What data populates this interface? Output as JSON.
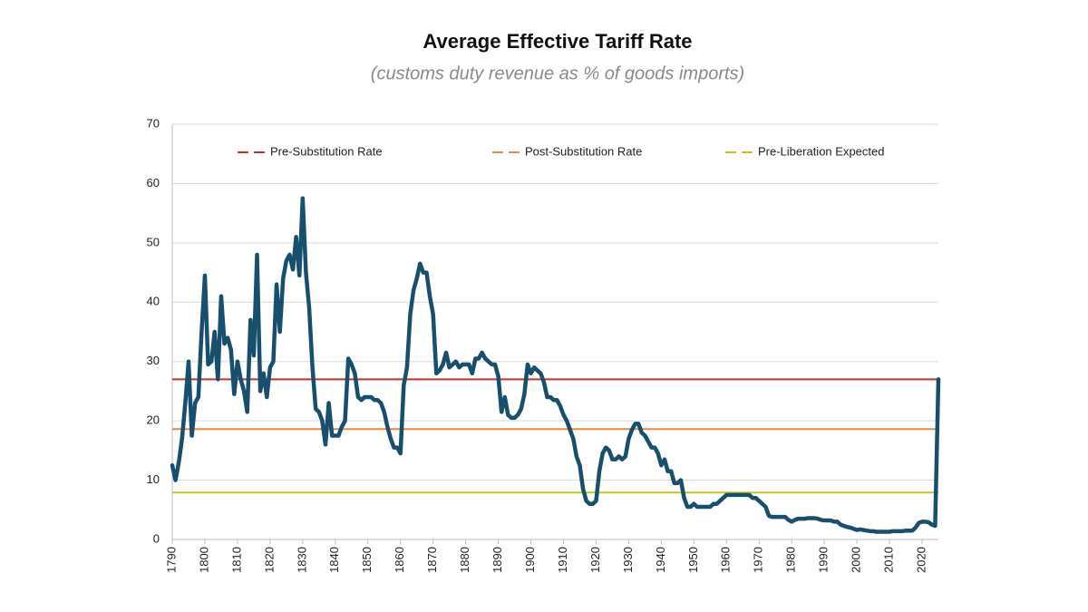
{
  "chart_data": {
    "type": "line",
    "title": "Average Effective Tariff Rate",
    "subtitle": "(customs duty revenue as % of goods imports)",
    "x": [
      1790,
      1791,
      1792,
      1793,
      1794,
      1795,
      1796,
      1797,
      1798,
      1799,
      1800,
      1801,
      1802,
      1803,
      1804,
      1805,
      1806,
      1807,
      1808,
      1809,
      1810,
      1811,
      1812,
      1813,
      1814,
      1815,
      1816,
      1817,
      1818,
      1819,
      1820,
      1821,
      1822,
      1823,
      1824,
      1825,
      1826,
      1827,
      1828,
      1829,
      1830,
      1831,
      1832,
      1833,
      1834,
      1835,
      1836,
      1837,
      1838,
      1839,
      1840,
      1841,
      1842,
      1843,
      1844,
      1845,
      1846,
      1847,
      1848,
      1849,
      1850,
      1851,
      1852,
      1853,
      1854,
      1855,
      1856,
      1857,
      1858,
      1859,
      1860,
      1861,
      1862,
      1863,
      1864,
      1865,
      1866,
      1867,
      1868,
      1869,
      1870,
      1871,
      1872,
      1873,
      1874,
      1875,
      1876,
      1877,
      1878,
      1879,
      1880,
      1881,
      1882,
      1883,
      1884,
      1885,
      1886,
      1887,
      1888,
      1889,
      1890,
      1891,
      1892,
      1893,
      1894,
      1895,
      1896,
      1897,
      1898,
      1899,
      1900,
      1901,
      1902,
      1903,
      1904,
      1905,
      1906,
      1907,
      1908,
      1909,
      1910,
      1911,
      1912,
      1913,
      1914,
      1915,
      1916,
      1917,
      1918,
      1919,
      1920,
      1921,
      1922,
      1923,
      1924,
      1925,
      1926,
      1927,
      1928,
      1929,
      1930,
      1931,
      1932,
      1933,
      1934,
      1935,
      1936,
      1937,
      1938,
      1939,
      1940,
      1941,
      1942,
      1943,
      1944,
      1945,
      1946,
      1947,
      1948,
      1949,
      1950,
      1951,
      1952,
      1953,
      1954,
      1955,
      1956,
      1957,
      1958,
      1959,
      1960,
      1961,
      1962,
      1963,
      1964,
      1965,
      1966,
      1967,
      1968,
      1969,
      1970,
      1971,
      1972,
      1973,
      1974,
      1975,
      1976,
      1977,
      1978,
      1979,
      1980,
      1981,
      1982,
      1983,
      1984,
      1985,
      1986,
      1987,
      1988,
      1989,
      1990,
      1991,
      1992,
      1993,
      1994,
      1995,
      1996,
      1997,
      1998,
      1999,
      2000,
      2001,
      2002,
      2003,
      2004,
      2005,
      2006,
      2007,
      2008,
      2009,
      2010,
      2011,
      2012,
      2013,
      2014,
      2015,
      2016,
      2017,
      2018,
      2019,
      2020,
      2021,
      2022,
      2023,
      2024,
      2025
    ],
    "series": [
      {
        "color": "#174f6d",
        "values": [
          12.5,
          10,
          13,
          17,
          23,
          30,
          17.5,
          23,
          24,
          35,
          44.5,
          29.5,
          30,
          35,
          27,
          41,
          33,
          34,
          32,
          24.5,
          30,
          27,
          25,
          21.5,
          37,
          31,
          48,
          25,
          28,
          24,
          29,
          30,
          43,
          35,
          44,
          47,
          48,
          45.5,
          51,
          44.5,
          57.5,
          45,
          39,
          29,
          22,
          21.5,
          20,
          16,
          23,
          17.5,
          17.5,
          17.5,
          19,
          20,
          30.5,
          29.5,
          28,
          24,
          23.5,
          24,
          24,
          24,
          23.5,
          23.5,
          23,
          21.5,
          19,
          17,
          15.5,
          15.5,
          14.5,
          26,
          29,
          38,
          42,
          44,
          46.5,
          45,
          45,
          41,
          38,
          28,
          28.5,
          29.5,
          31.5,
          29,
          29.5,
          30,
          29,
          29.5,
          29.5,
          29.5,
          28,
          30.5,
          30.5,
          31.5,
          30.5,
          30,
          29.5,
          29.5,
          27.5,
          21.5,
          24,
          21,
          20.5,
          20.5,
          21,
          22,
          24.5,
          29.5,
          28,
          29,
          28.5,
          28,
          26.5,
          24,
          24,
          23.5,
          23.5,
          22.5,
          21,
          20,
          18.5,
          17,
          14,
          12.5,
          8.5,
          6.5,
          6,
          6,
          6.5,
          11.5,
          14.5,
          15.5,
          15,
          13.5,
          13.5,
          14,
          13.5,
          14,
          17,
          18.5,
          19.5,
          19.5,
          18,
          17.5,
          16.5,
          15.5,
          15.5,
          14.5,
          12.5,
          13.5,
          11.5,
          11.5,
          9.5,
          9.5,
          10,
          7,
          5.5,
          5.5,
          6,
          5.5,
          5.5,
          5.5,
          5.5,
          5.5,
          6,
          6,
          6.5,
          7,
          7.5,
          7.5,
          7.5,
          7.5,
          7.5,
          7.5,
          7.5,
          7.5,
          7,
          7,
          6.5,
          6,
          5.5,
          4,
          3.8,
          3.8,
          3.8,
          3.8,
          3.8,
          3.3,
          3,
          3.3,
          3.5,
          3.5,
          3.5,
          3.6,
          3.6,
          3.6,
          3.5,
          3.3,
          3.2,
          3.2,
          3.2,
          3,
          3,
          2.5,
          2.3,
          2.1,
          2,
          1.8,
          1.6,
          1.7,
          1.6,
          1.5,
          1.4,
          1.4,
          1.3,
          1.3,
          1.3,
          1.3,
          1.3,
          1.4,
          1.4,
          1.4,
          1.4,
          1.5,
          1.5,
          1.5,
          2,
          2.8,
          3,
          3,
          2.9,
          2.5,
          2.3,
          27
        ]
      }
    ],
    "reference_lines": [
      {
        "name": "Pre-Substitution Rate",
        "color": "#c0322e",
        "value": 27
      },
      {
        "name": "Post-Substitution Rate",
        "color": "#e38b3f",
        "value": 18.6
      },
      {
        "name": "Pre-Liberation Expected",
        "color": "#c2c42e",
        "value": 7.9
      }
    ],
    "xlim": [
      1790,
      2025
    ],
    "xticks": [
      1790,
      1800,
      1810,
      1820,
      1830,
      1840,
      1850,
      1860,
      1870,
      1880,
      1890,
      1900,
      1910,
      1920,
      1930,
      1940,
      1950,
      1960,
      1970,
      1980,
      1990,
      2000,
      2010,
      2020
    ],
    "ylim": [
      0,
      70
    ],
    "yticks": [
      0,
      10,
      20,
      30,
      40,
      50,
      60,
      70
    ],
    "grid": true
  }
}
